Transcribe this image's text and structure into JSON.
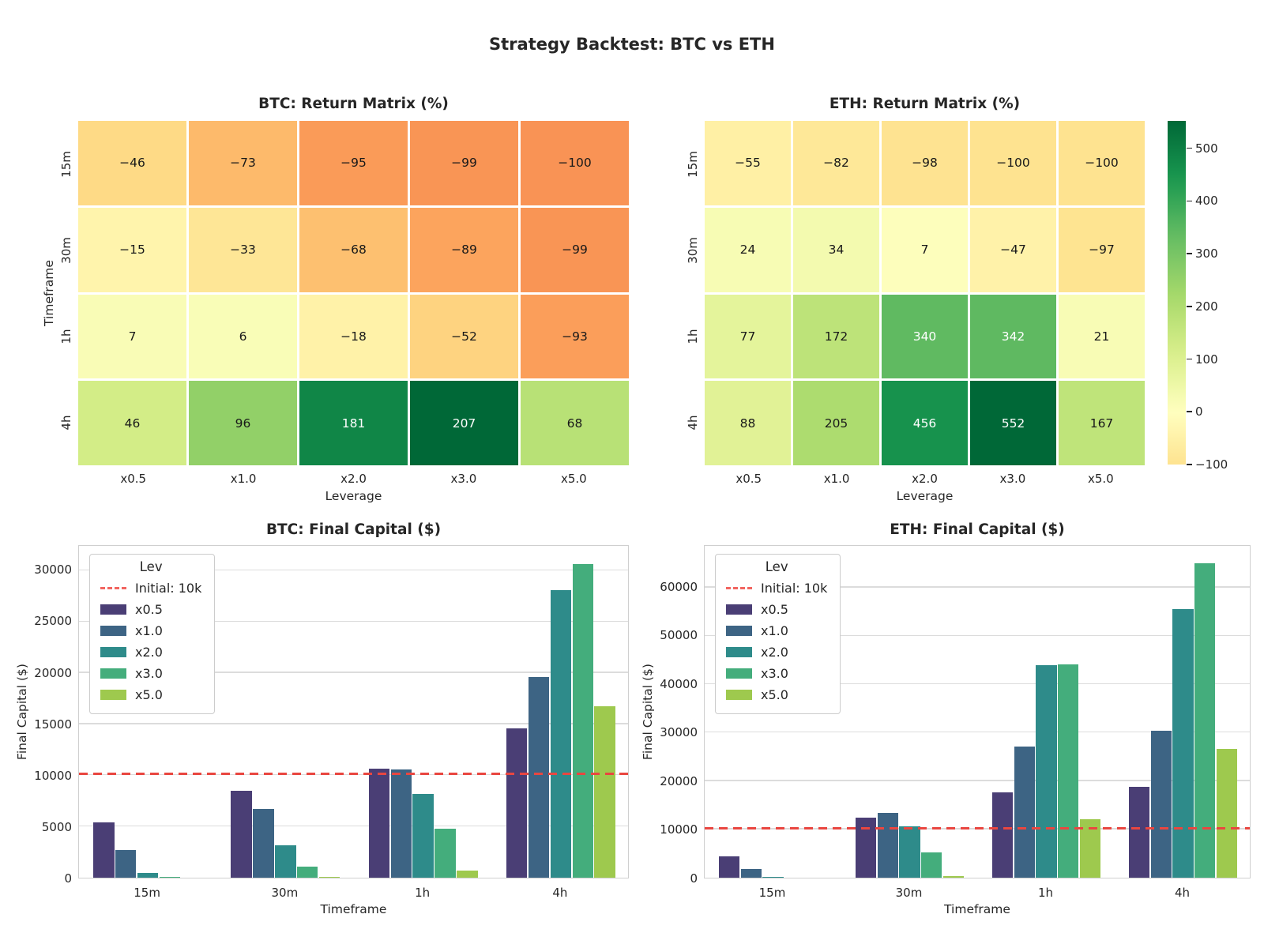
{
  "suptitle": "Strategy Backtest: BTC vs ETH",
  "chart_data": [
    {
      "type": "heatmap",
      "coin": "BTC",
      "title": "BTC: Return Matrix (%)",
      "xlabel": "Leverage",
      "ylabel": "Timeframe",
      "rows": [
        "15m",
        "30m",
        "1h",
        "4h"
      ],
      "cols": [
        "x0.5",
        "x1.0",
        "x2.0",
        "x3.0",
        "x5.0"
      ],
      "values": [
        [
          -46,
          -73,
          -95,
          -99,
          -100
        ],
        [
          -15,
          -33,
          -68,
          -89,
          -99
        ],
        [
          7,
          6,
          -18,
          -52,
          -93
        ],
        [
          46,
          96,
          181,
          207,
          68
        ]
      ],
      "vmax": 207,
      "colormap": "RdYlGn"
    },
    {
      "type": "heatmap",
      "coin": "ETH",
      "title": "ETH: Return Matrix (%)",
      "xlabel": "Leverage",
      "ylabel": "",
      "rows": [
        "15m",
        "30m",
        "1h",
        "4h"
      ],
      "cols": [
        "x0.5",
        "x1.0",
        "x2.0",
        "x3.0",
        "x5.0"
      ],
      "values": [
        [
          -55,
          -82,
          -98,
          -100,
          -100
        ],
        [
          24,
          34,
          7,
          -47,
          -97
        ],
        [
          77,
          172,
          340,
          342,
          21
        ],
        [
          88,
          205,
          456,
          552,
          167
        ]
      ],
      "vmax": 552,
      "colormap": "RdYlGn"
    },
    {
      "type": "bar",
      "coin": "BTC",
      "title": "BTC: Final Capital ($)",
      "xlabel": "Timeframe",
      "ylabel": "Final Capital ($)",
      "categories": [
        "15m",
        "30m",
        "1h",
        "4h"
      ],
      "series": [
        {
          "name": "x0.5",
          "values": [
            5400,
            8500,
            10700,
            14600
          ]
        },
        {
          "name": "x1.0",
          "values": [
            2700,
            6700,
            10600,
            19600
          ]
        },
        {
          "name": "x2.0",
          "values": [
            500,
            3200,
            8200,
            28100
          ]
        },
        {
          "name": "x3.0",
          "values": [
            100,
            1100,
            4800,
            30700
          ]
        },
        {
          "name": "x5.0",
          "values": [
            0,
            100,
            700,
            16800
          ]
        }
      ],
      "yticks": [
        0,
        5000,
        10000,
        15000,
        20000,
        25000,
        30000
      ],
      "ymax": 32400,
      "ref_line": {
        "label": "Initial: 10k",
        "value": 10000
      },
      "legend_title": "Lev",
      "legend_position": "upper left",
      "grid": "horizontal"
    },
    {
      "type": "bar",
      "coin": "ETH",
      "title": "ETH: Final Capital ($)",
      "xlabel": "Timeframe",
      "ylabel": "Final Capital ($)",
      "categories": [
        "15m",
        "30m",
        "1h",
        "4h"
      ],
      "series": [
        {
          "name": "x0.5",
          "values": [
            4500,
            12400,
            17700,
            18800
          ]
        },
        {
          "name": "x1.0",
          "values": [
            1800,
            13400,
            27200,
            30500
          ]
        },
        {
          "name": "x2.0",
          "values": [
            200,
            10700,
            44000,
            55600
          ]
        },
        {
          "name": "x3.0",
          "values": [
            0,
            5300,
            44200,
            65200
          ]
        },
        {
          "name": "x5.0",
          "values": [
            0,
            300,
            12100,
            26700
          ]
        }
      ],
      "yticks": [
        0,
        10000,
        20000,
        30000,
        40000,
        50000,
        60000
      ],
      "ymax": 68600,
      "ref_line": {
        "label": "Initial: 10k",
        "value": 10000
      },
      "legend_title": "Lev",
      "legend_position": "upper left",
      "grid": "horizontal"
    }
  ],
  "colorbar": {
    "tick_values": [
      500,
      400,
      300,
      200,
      100,
      0,
      -100
    ],
    "vmin": -100,
    "vmax": 552
  },
  "legend": {
    "title": "Lev",
    "ref_label": "Initial: 10k",
    "entries": [
      "x0.5",
      "x1.0",
      "x2.0",
      "x3.0",
      "x5.0"
    ]
  },
  "colors": {
    "palette": {
      "x0.5": "#4a3e75",
      "x1.0": "#3d6484",
      "x2.0": "#2e8b8a",
      "x3.0": "#44ad7c",
      "x5.0": "#9ec94e"
    },
    "ref_line": "#e94640",
    "grid": "#dcdcdc",
    "spine": "#cfcfcf",
    "text": "#262626",
    "annot_dark": "#191919",
    "annot_light": "#ffffff"
  }
}
